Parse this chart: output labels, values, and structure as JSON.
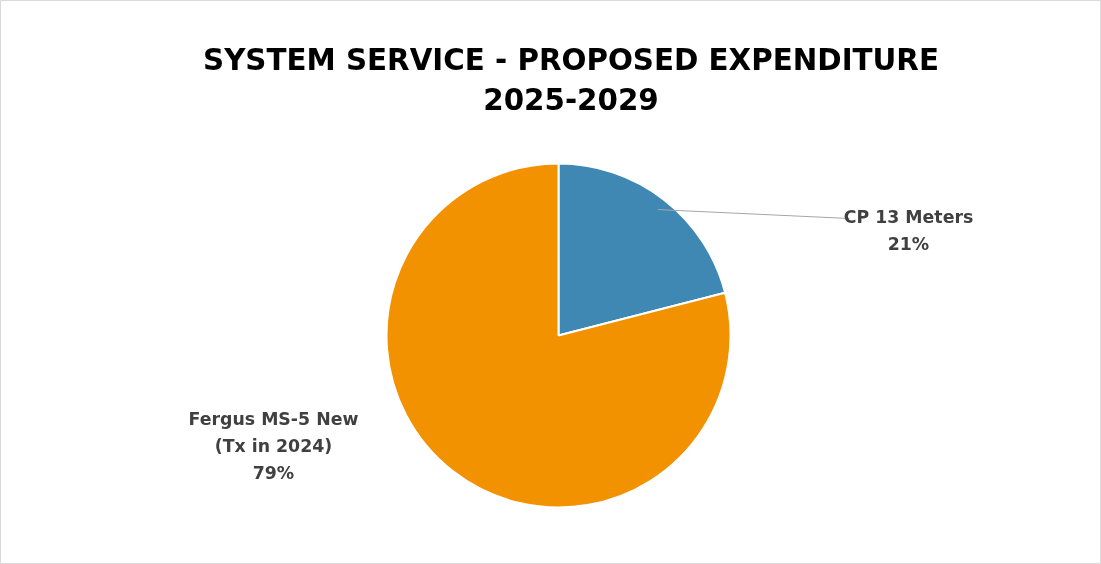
{
  "chart_data": {
    "type": "pie",
    "title": "SYSTEM SERVICE - PROPOSED EXPENDITURE\n2025-2029",
    "categories": [
      "CP 13 Meters",
      "Fergus MS-5 New\n(Tx in 2024)"
    ],
    "values": [
      21,
      79
    ],
    "colors": [
      "#3f88b4",
      "#f39200"
    ],
    "value_labels": [
      "21%",
      "79%"
    ]
  }
}
